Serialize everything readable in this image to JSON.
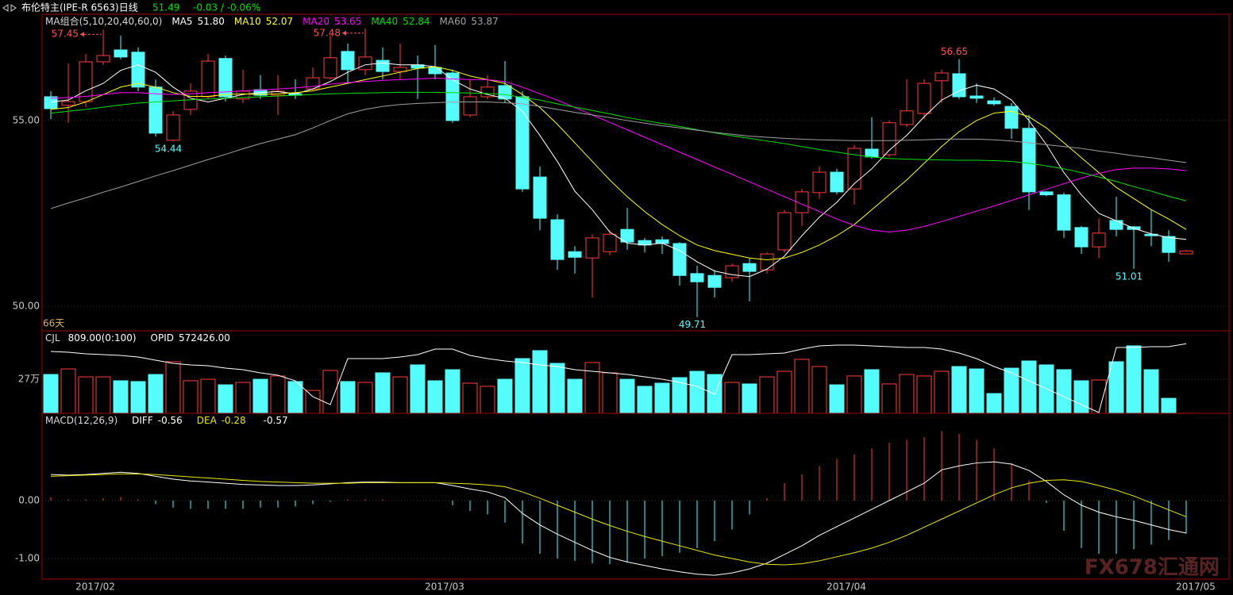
{
  "header": {
    "title": "布伦特主(IPE-R 6563)日线",
    "price": 51.49,
    "change": "-0.03 / -0.06%",
    "watermark": "FX678汇通网"
  },
  "chart_data": [
    {
      "type": "candlestick",
      "name": "MA组合(5,10,20,40,60,0)",
      "period_label": "66天",
      "up_color": "#ff3c3c",
      "down_color": "#54fcfc",
      "open": [
        55.64,
        55.41,
        55.51,
        56.58,
        56.9,
        56.84,
        55.9,
        54.47,
        55.3,
        55.64,
        56.67,
        55.58,
        55.83,
        55.68,
        55.72,
        55.85,
        56.15,
        56.86,
        56.37,
        56.62,
        56.32,
        56.5,
        56.43,
        56.28,
        55.15,
        55.64,
        55.94,
        55.64,
        53.48,
        52.33,
        51.47,
        51.3,
        51.47,
        52.07,
        51.77,
        51.79,
        51.69,
        50.88,
        50.83,
        50.77,
        51.15,
        50.98,
        51.52,
        52.52,
        53.06,
        53.61,
        53.16,
        54.23,
        54.08,
        54.89,
        55.19,
        56.07,
        56.26,
        55.66,
        55.53,
        55.38,
        54.79,
        53.08,
        53.0,
        52.12,
        51.6,
        52.31,
        52.14,
        51.94,
        51.88,
        51.41
      ],
      "high": [
        55.79,
        56.54,
        56.79,
        57.45,
        57.29,
        56.97,
        56.1,
        55.25,
        56.0,
        56.79,
        56.75,
        56.37,
        56.22,
        56.22,
        56.11,
        56.43,
        57.29,
        57.07,
        57.48,
        56.97,
        57.07,
        56.75,
        57.03,
        56.37,
        56.11,
        56.22,
        56.6,
        55.79,
        53.76,
        52.48,
        51.62,
        51.94,
        52.05,
        52.65,
        51.84,
        51.88,
        51.73,
        51.09,
        50.98,
        51.15,
        51.3,
        51.45,
        52.59,
        53.16,
        53.76,
        53.7,
        54.34,
        55.09,
        55.0,
        56.11,
        56.11,
        56.37,
        56.65,
        56.0,
        55.62,
        55.47,
        55.15,
        53.1,
        53.06,
        52.16,
        52.37,
        52.95,
        52.16,
        52.59,
        52.05,
        51.52
      ],
      "low": [
        55.04,
        54.94,
        55.36,
        56.5,
        56.65,
        55.79,
        54.57,
        54.44,
        55.15,
        55.58,
        55.51,
        55.47,
        55.58,
        55.15,
        55.58,
        55.79,
        56.11,
        56.0,
        56.22,
        56.11,
        56.11,
        55.58,
        56.11,
        54.94,
        55.09,
        55.58,
        55.47,
        53.08,
        52.05,
        50.98,
        50.88,
        50.24,
        51.37,
        51.52,
        51.45,
        51.41,
        50.56,
        49.71,
        50.24,
        50.66,
        50.13,
        50.88,
        51.45,
        52.16,
        52.9,
        53.01,
        52.74,
        53.97,
        54.02,
        54.83,
        55.04,
        55.47,
        55.58,
        55.47,
        55.4,
        54.51,
        52.59,
        52.97,
        51.84,
        51.41,
        51.3,
        51.88,
        51.01,
        51.62,
        51.2,
        51.41
      ],
      "close": [
        55.32,
        55.51,
        56.58,
        56.75,
        56.71,
        55.9,
        54.66,
        55.15,
        55.79,
        56.6,
        55.64,
        55.79,
        55.68,
        55.79,
        55.68,
        56.15,
        56.69,
        56.37,
        56.71,
        56.32,
        56.43,
        56.41,
        56.26,
        55.0,
        55.64,
        55.9,
        55.58,
        53.16,
        52.37,
        51.26,
        51.32,
        51.84,
        51.94,
        51.73,
        51.65,
        51.69,
        50.83,
        50.66,
        50.51,
        51.09,
        50.94,
        51.41,
        52.52,
        53.08,
        53.61,
        53.08,
        54.25,
        54.02,
        54.94,
        55.26,
        56.0,
        56.28,
        55.64,
        55.6,
        55.45,
        54.79,
        53.08,
        53.0,
        52.05,
        51.6,
        51.97,
        52.07,
        52.07,
        51.9,
        51.45,
        51.49
      ],
      "series": [
        {
          "name": "MA5",
          "current": "51.80",
          "color": "#ffffff",
          "values": [
            55.5,
            55.55,
            55.8,
            56.0,
            56.35,
            56.5,
            56.3,
            55.9,
            55.6,
            55.5,
            55.6,
            55.7,
            55.75,
            55.78,
            55.72,
            55.85,
            56.05,
            56.3,
            56.5,
            56.55,
            56.5,
            56.5,
            56.45,
            56.1,
            55.85,
            55.7,
            55.6,
            55.25,
            54.6,
            53.9,
            53.1,
            52.6,
            52.0,
            51.7,
            51.65,
            51.7,
            51.5,
            51.2,
            50.95,
            50.85,
            50.8,
            51.0,
            51.35,
            51.9,
            52.4,
            52.8,
            53.3,
            53.7,
            54.2,
            54.6,
            55.1,
            55.55,
            55.8,
            55.95,
            55.85,
            55.55,
            55.0,
            54.35,
            53.6,
            53.0,
            52.5,
            52.3,
            52.1,
            51.95,
            51.85,
            51.8
          ]
        },
        {
          "name": "MA10",
          "current": "52.07",
          "color": "#ffff00",
          "values": [
            55.3,
            55.35,
            55.5,
            55.7,
            55.9,
            56.0,
            55.9,
            55.75,
            55.65,
            55.65,
            55.7,
            55.72,
            55.7,
            55.72,
            55.75,
            55.8,
            55.9,
            56.0,
            56.1,
            56.2,
            56.3,
            56.4,
            56.45,
            56.35,
            56.2,
            56.1,
            56.0,
            55.7,
            55.35,
            54.9,
            54.4,
            53.9,
            53.4,
            52.95,
            52.55,
            52.2,
            51.9,
            51.65,
            51.5,
            51.4,
            51.3,
            51.25,
            51.3,
            51.45,
            51.65,
            51.9,
            52.2,
            52.6,
            53.0,
            53.4,
            53.85,
            54.3,
            54.7,
            55.0,
            55.2,
            55.25,
            55.1,
            54.8,
            54.4,
            54.0,
            53.6,
            53.2,
            52.9,
            52.6,
            52.35,
            52.07
          ]
        },
        {
          "name": "MA20",
          "current": "53.65",
          "color": "#ff00ff",
          "values": [
            55.6,
            55.62,
            55.65,
            55.7,
            55.75,
            55.75,
            55.72,
            55.7,
            55.72,
            55.75,
            55.77,
            55.8,
            55.82,
            55.85,
            55.88,
            55.92,
            55.98,
            56.02,
            56.05,
            56.08,
            56.1,
            56.12,
            56.14,
            56.12,
            56.1,
            56.1,
            56.05,
            55.9,
            55.72,
            55.55,
            55.35,
            55.15,
            54.95,
            54.75,
            54.55,
            54.35,
            54.15,
            53.95,
            53.75,
            53.55,
            53.35,
            53.15,
            52.95,
            52.75,
            52.55,
            52.35,
            52.18,
            52.05,
            52.0,
            52.05,
            52.15,
            52.28,
            52.42,
            52.56,
            52.7,
            52.85,
            53.0,
            53.15,
            53.3,
            53.45,
            53.58,
            53.68,
            53.72,
            53.72,
            53.7,
            53.65
          ]
        },
        {
          "name": "MA40",
          "current": "52.84",
          "color": "#00e000",
          "values": [
            55.2,
            55.25,
            55.3,
            55.36,
            55.42,
            55.47,
            55.5,
            55.53,
            55.56,
            55.58,
            55.6,
            55.62,
            55.64,
            55.66,
            55.68,
            55.7,
            55.72,
            55.73,
            55.74,
            55.75,
            55.76,
            55.76,
            55.76,
            55.75,
            55.74,
            55.73,
            55.7,
            55.62,
            55.55,
            55.45,
            55.36,
            55.27,
            55.18,
            55.08,
            55.0,
            54.92,
            54.84,
            54.75,
            54.67,
            54.59,
            54.52,
            54.45,
            54.38,
            54.3,
            54.22,
            54.15,
            54.08,
            54.02,
            53.98,
            53.96,
            53.95,
            53.94,
            53.93,
            53.93,
            53.92,
            53.9,
            53.85,
            53.78,
            53.7,
            53.6,
            53.48,
            53.36,
            53.22,
            53.1,
            52.96,
            52.84
          ]
        },
        {
          "name": "MA60",
          "current": "53.87",
          "color": "#a0a0a0",
          "values": [
            52.63,
            52.78,
            52.92,
            53.07,
            53.21,
            53.36,
            53.51,
            53.65,
            53.8,
            53.95,
            54.09,
            54.24,
            54.38,
            54.5,
            54.62,
            54.8,
            55.0,
            55.18,
            55.3,
            55.38,
            55.43,
            55.46,
            55.48,
            55.5,
            55.5,
            55.5,
            55.48,
            55.45,
            55.38,
            55.3,
            55.22,
            55.15,
            55.08,
            55.0,
            54.93,
            54.86,
            54.8,
            54.74,
            54.68,
            54.63,
            54.58,
            54.55,
            54.52,
            54.5,
            54.48,
            54.47,
            54.46,
            54.46,
            54.46,
            54.47,
            54.48,
            54.5,
            54.5,
            54.5,
            54.48,
            54.45,
            54.4,
            54.35,
            54.3,
            54.25,
            54.18,
            54.12,
            54.05,
            54.0,
            53.93,
            53.87
          ]
        }
      ],
      "annotations": [
        {
          "value": 57.45,
          "at": "high",
          "arrow": true
        },
        {
          "value": 57.48,
          "at": "high",
          "arrow": true
        },
        {
          "value": 54.44,
          "at": "low",
          "arrow": false
        },
        {
          "value": 56.65,
          "at": "high",
          "arrow": false
        },
        {
          "value": 49.71,
          "at": "low",
          "arrow": false
        },
        {
          "value": 51.01,
          "at": "low",
          "arrow": false
        }
      ],
      "ylim": [
        49.34,
        57.86
      ],
      "yticks": [
        {
          "value": 55,
          "label": "55.00"
        },
        {
          "value": 50,
          "label": "50.00"
        }
      ],
      "grid": true
    },
    {
      "type": "bar",
      "name": "CJL",
      "current": "809.00(0:100)",
      "values": [
        30.8,
        35.2,
        28.9,
        28.9,
        25.8,
        25.2,
        30.8,
        40.9,
        25.8,
        27.0,
        22.6,
        24.5,
        27.0,
        29.6,
        25.2,
        18.2,
        34.0,
        25.2,
        24.5,
        32.1,
        28.9,
        38.4,
        25.8,
        34.6,
        23.9,
        21.4,
        27.0,
        43.4,
        49.7,
        39.6,
        27.0,
        40.3,
        32.1,
        27.0,
        21.4,
        23.9,
        28.3,
        33.3,
        30.8,
        24.5,
        23.3,
        28.9,
        33.3,
        42.8,
        37.1,
        22.6,
        29.6,
        34.6,
        23.3,
        30.8,
        29.6,
        33.3,
        37.1,
        35.2,
        15.7,
        35.8,
        41.5,
        38.4,
        34.6,
        25.8,
        26.4,
        40.9,
        53.5,
        34.6,
        11.9,
        0.0809
      ],
      "series": [
        {
          "name": "OPID",
          "current": "572426.00",
          "color": "#ffffff",
          "axis": "y2",
          "values": [
            550000,
            547700,
            543100,
            540800,
            538500,
            533800,
            524600,
            515400,
            510800,
            508500,
            501500,
            496900,
            487700,
            480800,
            464600,
            418500,
            395400,
            529200,
            529200,
            529200,
            533800,
            540800,
            556900,
            556900,
            538500,
            529200,
            522300,
            517700,
            510800,
            506200,
            496900,
            492300,
            487700,
            483100,
            476200,
            469200,
            460000,
            448500,
            425400,
            540800,
            540800,
            543100,
            545400,
            556900,
            566200,
            568500,
            568500,
            566200,
            563800,
            561500,
            561500,
            556900,
            545400,
            529200,
            506200,
            487700,
            464600,
            441500,
            418500,
            395400,
            372300,
            561500,
            561500,
            563800,
            563800,
            572426
          ]
        }
      ],
      "ylim": [
        0,
        65.4
      ],
      "yticks": [
        {
          "value": 27,
          "label": "27万"
        }
      ],
      "y2lim": [
        370000,
        610000
      ],
      "grid": true
    },
    {
      "type": "macd",
      "name": "MACD(12,26,9)",
      "current": "-0.57",
      "values": [
        0.06,
        0.02,
        0.02,
        0.04,
        0.06,
        0.02,
        -0.06,
        -0.12,
        -0.14,
        -0.14,
        -0.14,
        -0.14,
        -0.12,
        -0.12,
        -0.1,
        -0.06,
        -0.02,
        0.02,
        0.02,
        0.02,
        0,
        0,
        0,
        -0.08,
        -0.18,
        -0.24,
        -0.38,
        -0.74,
        -0.92,
        -1.0,
        -1.04,
        -1.08,
        -1.1,
        -1.06,
        -1.0,
        -0.96,
        -0.9,
        -0.82,
        -0.7,
        -0.5,
        -0.24,
        0.04,
        0.3,
        0.45,
        0.6,
        0.72,
        0.8,
        0.9,
        1.0,
        1.05,
        1.1,
        1.2,
        1.15,
        1.05,
        0.9,
        0.65,
        0.35,
        -0.04,
        -0.52,
        -0.82,
        -0.92,
        -0.92,
        -0.84,
        -0.76,
        -0.68,
        -0.57
      ],
      "series": [
        {
          "name": "DIFF",
          "current": "-0.56",
          "color": "#ffffff",
          "values": [
            0.45,
            0.44,
            0.45,
            0.47,
            0.49,
            0.47,
            0.42,
            0.37,
            0.34,
            0.32,
            0.3,
            0.28,
            0.27,
            0.26,
            0.26,
            0.27,
            0.29,
            0.31,
            0.32,
            0.32,
            0.31,
            0.31,
            0.31,
            0.26,
            0.2,
            0.15,
            0.05,
            -0.22,
            -0.42,
            -0.58,
            -0.72,
            -0.86,
            -0.98,
            -1.06,
            -1.12,
            -1.18,
            -1.23,
            -1.27,
            -1.29,
            -1.25,
            -1.18,
            -1.08,
            -0.93,
            -0.78,
            -0.6,
            -0.45,
            -0.3,
            -0.15,
            0.0,
            0.15,
            0.3,
            0.53,
            0.6,
            0.65,
            0.67,
            0.63,
            0.52,
            0.33,
            0.1,
            -0.08,
            -0.2,
            -0.28,
            -0.34,
            -0.42,
            -0.5,
            -0.56
          ]
        },
        {
          "name": "DEA",
          "current": "-0.28",
          "color": "#e8e800",
          "values": [
            0.42,
            0.43,
            0.44,
            0.45,
            0.46,
            0.46,
            0.45,
            0.43,
            0.41,
            0.39,
            0.37,
            0.35,
            0.33,
            0.32,
            0.31,
            0.3,
            0.3,
            0.3,
            0.31,
            0.31,
            0.31,
            0.31,
            0.31,
            0.3,
            0.29,
            0.27,
            0.24,
            0.15,
            0.04,
            -0.08,
            -0.2,
            -0.32,
            -0.43,
            -0.53,
            -0.62,
            -0.7,
            -0.78,
            -0.86,
            -0.94,
            -1.0,
            -1.06,
            -1.1,
            -1.11,
            -1.09,
            -1.04,
            -0.97,
            -0.9,
            -0.82,
            -0.72,
            -0.6,
            -0.46,
            -0.32,
            -0.18,
            -0.04,
            0.1,
            0.22,
            0.3,
            0.35,
            0.36,
            0.33,
            0.26,
            0.18,
            0.08,
            -0.04,
            -0.16,
            -0.28
          ]
        }
      ],
      "ylim": [
        -1.356,
        1.507
      ],
      "yticks": [
        {
          "value": 0,
          "label": "0.00"
        },
        {
          "value": -1,
          "label": "-1.00"
        }
      ],
      "grid": true,
      "xticks": [
        {
          "value": 2,
          "label": "2017/02"
        },
        {
          "value": 22,
          "label": "2017/03"
        },
        {
          "value": 45,
          "label": "2017/04"
        },
        {
          "value": 65,
          "label": "2017/05"
        }
      ]
    }
  ]
}
